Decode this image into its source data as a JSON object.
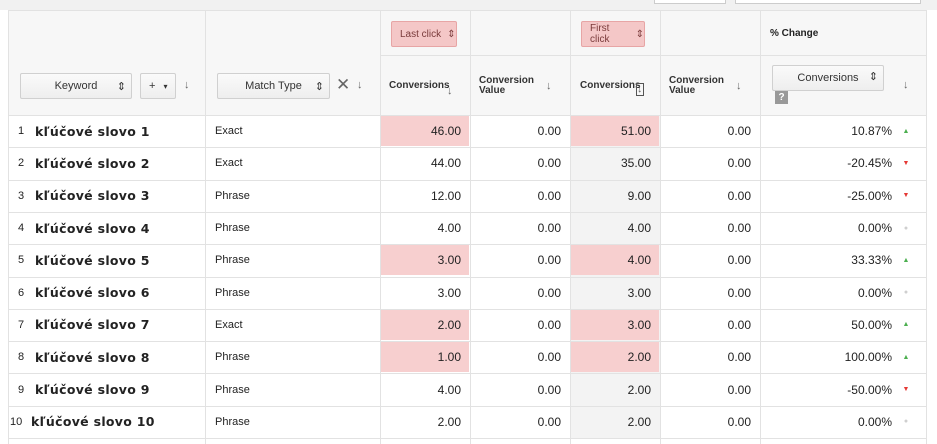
{
  "header": {
    "groups": {
      "last": "Last click",
      "first": "First click",
      "change": "% Change"
    },
    "controls": {
      "keyword": "Keyword",
      "add": "+",
      "match_type": "Match Type",
      "change_metric": "Conversions",
      "help": "?"
    },
    "columns": {
      "last_conversions": "Conversions",
      "last_value": "Conversion Value",
      "first_conversions": "Conversions",
      "first_value": "Conversion Value"
    }
  },
  "table": {
    "rows": [
      {
        "index": "1",
        "keyword": "kľúčové slovo 1",
        "match_type": "Exact",
        "last_conversions": "46.00",
        "last_value": "0.00",
        "first_conversions": "51.00",
        "first_value": "0.00",
        "change": "10.87%",
        "trend": "up",
        "highlight": true
      },
      {
        "index": "2",
        "keyword": "kľúčové slovo 2",
        "match_type": "Exact",
        "last_conversions": "44.00",
        "last_value": "0.00",
        "first_conversions": "35.00",
        "first_value": "0.00",
        "change": "-20.45%",
        "trend": "down",
        "highlight": false
      },
      {
        "index": "3",
        "keyword": "kľúčové slovo 3",
        "match_type": "Phrase",
        "last_conversions": "12.00",
        "last_value": "0.00",
        "first_conversions": "9.00",
        "first_value": "0.00",
        "change": "-25.00%",
        "trend": "down",
        "highlight": false
      },
      {
        "index": "4",
        "keyword": "kľúčové slovo 4",
        "match_type": "Phrase",
        "last_conversions": "4.00",
        "last_value": "0.00",
        "first_conversions": "4.00",
        "first_value": "0.00",
        "change": "0.00%",
        "trend": "flat",
        "highlight": false
      },
      {
        "index": "5",
        "keyword": "kľúčové slovo 5",
        "match_type": "Phrase",
        "last_conversions": "3.00",
        "last_value": "0.00",
        "first_conversions": "4.00",
        "first_value": "0.00",
        "change": "33.33%",
        "trend": "up",
        "highlight": true
      },
      {
        "index": "6",
        "keyword": "kľúčové slovo 6",
        "match_type": "Phrase",
        "last_conversions": "3.00",
        "last_value": "0.00",
        "first_conversions": "3.00",
        "first_value": "0.00",
        "change": "0.00%",
        "trend": "flat",
        "highlight": false
      },
      {
        "index": "7",
        "keyword": "kľúčové slovo 7",
        "match_type": "Exact",
        "last_conversions": "2.00",
        "last_value": "0.00",
        "first_conversions": "3.00",
        "first_value": "0.00",
        "change": "50.00%",
        "trend": "up",
        "highlight": true
      },
      {
        "index": "8",
        "keyword": "kľúčové slovo 8",
        "match_type": "Phrase",
        "last_conversions": "1.00",
        "last_value": "0.00",
        "first_conversions": "2.00",
        "first_value": "0.00",
        "change": "100.00%",
        "trend": "up",
        "highlight": true
      },
      {
        "index": "9",
        "keyword": "kľúčové slovo 9",
        "match_type": "Phrase",
        "last_conversions": "4.00",
        "last_value": "0.00",
        "first_conversions": "2.00",
        "first_value": "0.00",
        "change": "-50.00%",
        "trend": "down",
        "highlight": false
      },
      {
        "index": "10",
        "keyword": "kľúčové slovo 10",
        "match_type": "Phrase",
        "last_conversions": "2.00",
        "last_value": "0.00",
        "first_conversions": "2.00",
        "first_value": "0.00",
        "change": "0.00%",
        "trend": "flat",
        "highlight": false
      }
    ]
  }
}
